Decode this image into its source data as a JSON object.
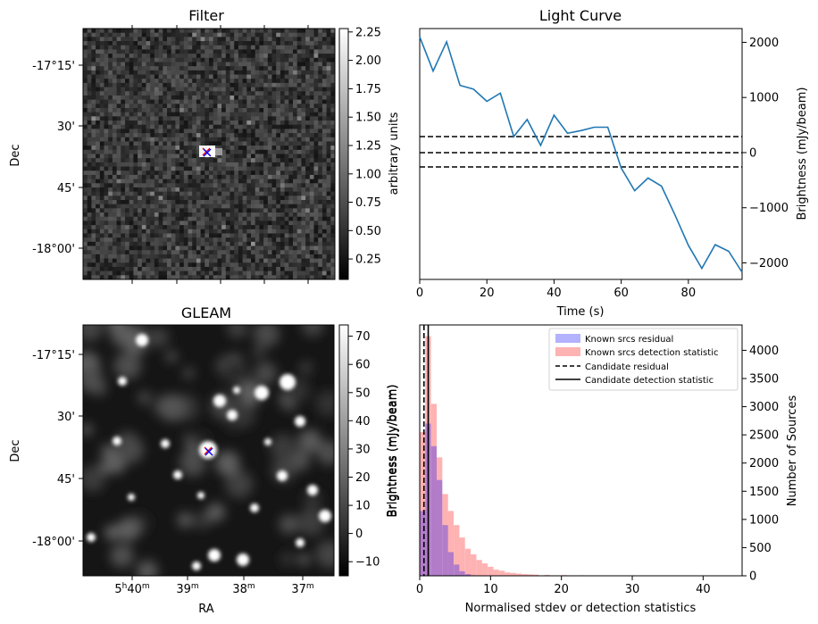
{
  "panels": {
    "filter": {
      "title": "Filter",
      "ylabel": "Dec",
      "dec_ticks": [
        "-17°15'",
        "30'",
        "45'",
        "-18°00'"
      ],
      "colorbar": {
        "label": "arbitrary units",
        "range": [
          0.07,
          2.28
        ],
        "ticks": [
          "0.25",
          "0.50",
          "0.75",
          "1.00",
          "1.25",
          "1.50",
          "1.75",
          "2.00",
          "2.25"
        ],
        "tick_values": [
          0.25,
          0.5,
          0.75,
          1.0,
          1.25,
          1.5,
          1.75,
          2.0,
          2.25
        ]
      },
      "marker": "x"
    },
    "gleam": {
      "title": "GLEAM",
      "ylabel": "Dec",
      "xlabel": "RA",
      "dec_ticks": [
        "-17°15'",
        "30'",
        "45'",
        "-18°00'"
      ],
      "ra_ticks": [
        {
          "main": "5",
          "h": "h",
          "num": "40",
          "m": "m"
        },
        {
          "main": "",
          "h": "",
          "num": "39",
          "m": "m"
        },
        {
          "main": "",
          "h": "",
          "num": "38",
          "m": "m"
        },
        {
          "main": "",
          "h": "",
          "num": "37",
          "m": "m"
        }
      ],
      "colorbar": {
        "label": "Brightness (mJy/beam)",
        "range": [
          -15,
          74
        ],
        "ticks": [
          "−10",
          "0",
          "10",
          "20",
          "30",
          "40",
          "50",
          "60",
          "70"
        ],
        "tick_values": [
          -10,
          0,
          10,
          20,
          30,
          40,
          50,
          60,
          70
        ]
      },
      "marker": "x"
    }
  },
  "chart_data": [
    {
      "type": "line",
      "title": "Light Curve",
      "xlabel": "Time (s)",
      "ylabel": "Brightness (mJy/beam)",
      "xlim": [
        0,
        96
      ],
      "ylim": [
        -2300,
        2250
      ],
      "xticks": [
        "0",
        "20",
        "40",
        "60",
        "80"
      ],
      "yticks": [
        "−2000",
        "−1000",
        "0",
        "1000",
        "2000"
      ],
      "series": [
        {
          "color": "#1f77b4",
          "x": [
            0,
            4,
            8,
            12,
            16,
            20,
            24,
            28,
            32,
            36,
            40,
            44,
            48,
            52,
            56,
            60,
            64,
            68,
            72,
            76,
            80,
            84,
            88,
            92,
            96
          ],
          "y": [
            2100,
            1480,
            2010,
            1220,
            1150,
            930,
            1080,
            290,
            600,
            130,
            680,
            350,
            400,
            460,
            460,
            -280,
            -690,
            -460,
            -610,
            -1130,
            -1680,
            -2100,
            -1670,
            -1790,
            -2170
          ]
        }
      ],
      "hlines": [
        {
          "y": 290,
          "style": "dashed",
          "color": "#000000"
        },
        {
          "y": 0,
          "style": "dashed",
          "color": "#000000"
        },
        {
          "y": -260,
          "style": "dashed",
          "color": "#000000"
        }
      ]
    },
    {
      "type": "bar",
      "subtype": "histogram",
      "xlabel": "Normalised stdev or detection statistics",
      "ylabel_left": "Brightness (mJy/beam)",
      "ylabel_right": "Number of Sources",
      "xlim": [
        0,
        45.5
      ],
      "ylim": [
        0,
        4450
      ],
      "xticks": [
        "0",
        "10",
        "20",
        "30",
        "40"
      ],
      "yticks": [
        "0",
        "500",
        "1000",
        "1500",
        "2000",
        "2500",
        "3000",
        "3500",
        "4000"
      ],
      "bin_width": 0.8,
      "series": [
        {
          "name": "Known srcs residual",
          "color": "#0000ff",
          "alpha": 0.3,
          "bin_starts": [
            0,
            0.8,
            1.6,
            2.4,
            3.2,
            4.0,
            4.8,
            5.6,
            6.4,
            7.2
          ],
          "values": [
            1150,
            2700,
            2300,
            1700,
            900,
            420,
            200,
            80,
            30,
            10
          ]
        },
        {
          "name": "Known srcs detection statistic",
          "color": "#ff0000",
          "alpha": 0.3,
          "bin_starts": [
            0,
            0.8,
            1.6,
            2.4,
            3.2,
            4.0,
            4.8,
            5.6,
            6.4,
            7.2,
            8.0,
            8.8,
            9.6,
            10.4,
            11.2,
            12.0,
            12.8,
            13.6,
            14.4,
            15.2,
            16.0,
            17.6,
            20.0,
            22.4,
            25.6,
            29.6,
            33.6,
            36.0
          ],
          "values": [
            2550,
            4250,
            3050,
            2100,
            1450,
            1150,
            900,
            680,
            480,
            380,
            280,
            220,
            160,
            110,
            90,
            60,
            50,
            40,
            30,
            25,
            20,
            15,
            12,
            10,
            8,
            6,
            5,
            4
          ]
        }
      ],
      "vlines": [
        {
          "name": "Candidate residual",
          "x": 0.6,
          "style": "dashed",
          "color": "#000000"
        },
        {
          "name": "Candidate detection statistic",
          "x": 1.2,
          "style": "solid",
          "color": "#000000"
        }
      ],
      "legend_position": "top-right"
    }
  ]
}
